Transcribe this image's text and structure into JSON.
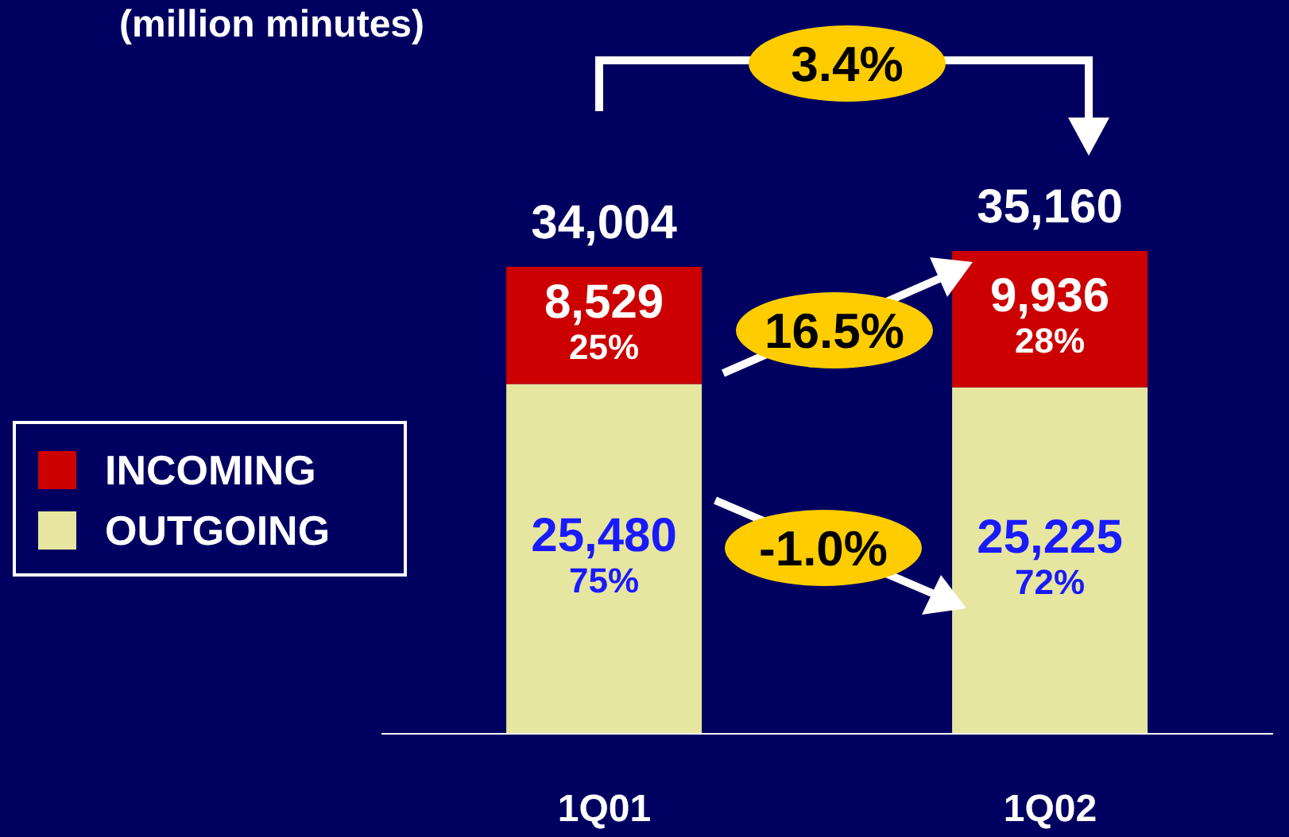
{
  "chart_data": {
    "type": "bar",
    "title": "(million minutes)",
    "categories": [
      "1Q01",
      "1Q02"
    ],
    "stacked": true,
    "legend": "left",
    "series": [
      {
        "name": "OUTGOING",
        "color": "#e6e6a0",
        "values": [
          25480,
          25225
        ],
        "value_labels": [
          "25,480\n75%",
          "25,225\n72%"
        ]
      },
      {
        "name": "INCOMING",
        "color": "#cc0000",
        "values": [
          8529,
          9936
        ],
        "value_labels": [
          "8,529\n25%",
          "9,936\n28%"
        ]
      }
    ],
    "annotations": [
      "3.4%",
      "16.5%",
      "-1.0%",
      {
        "text": "34,004",
        "x": "1Q01",
        "y": 34004
      },
      {
        "text": "35,160",
        "x": "1Q02",
        "y": 35160
      }
    ]
  }
}
